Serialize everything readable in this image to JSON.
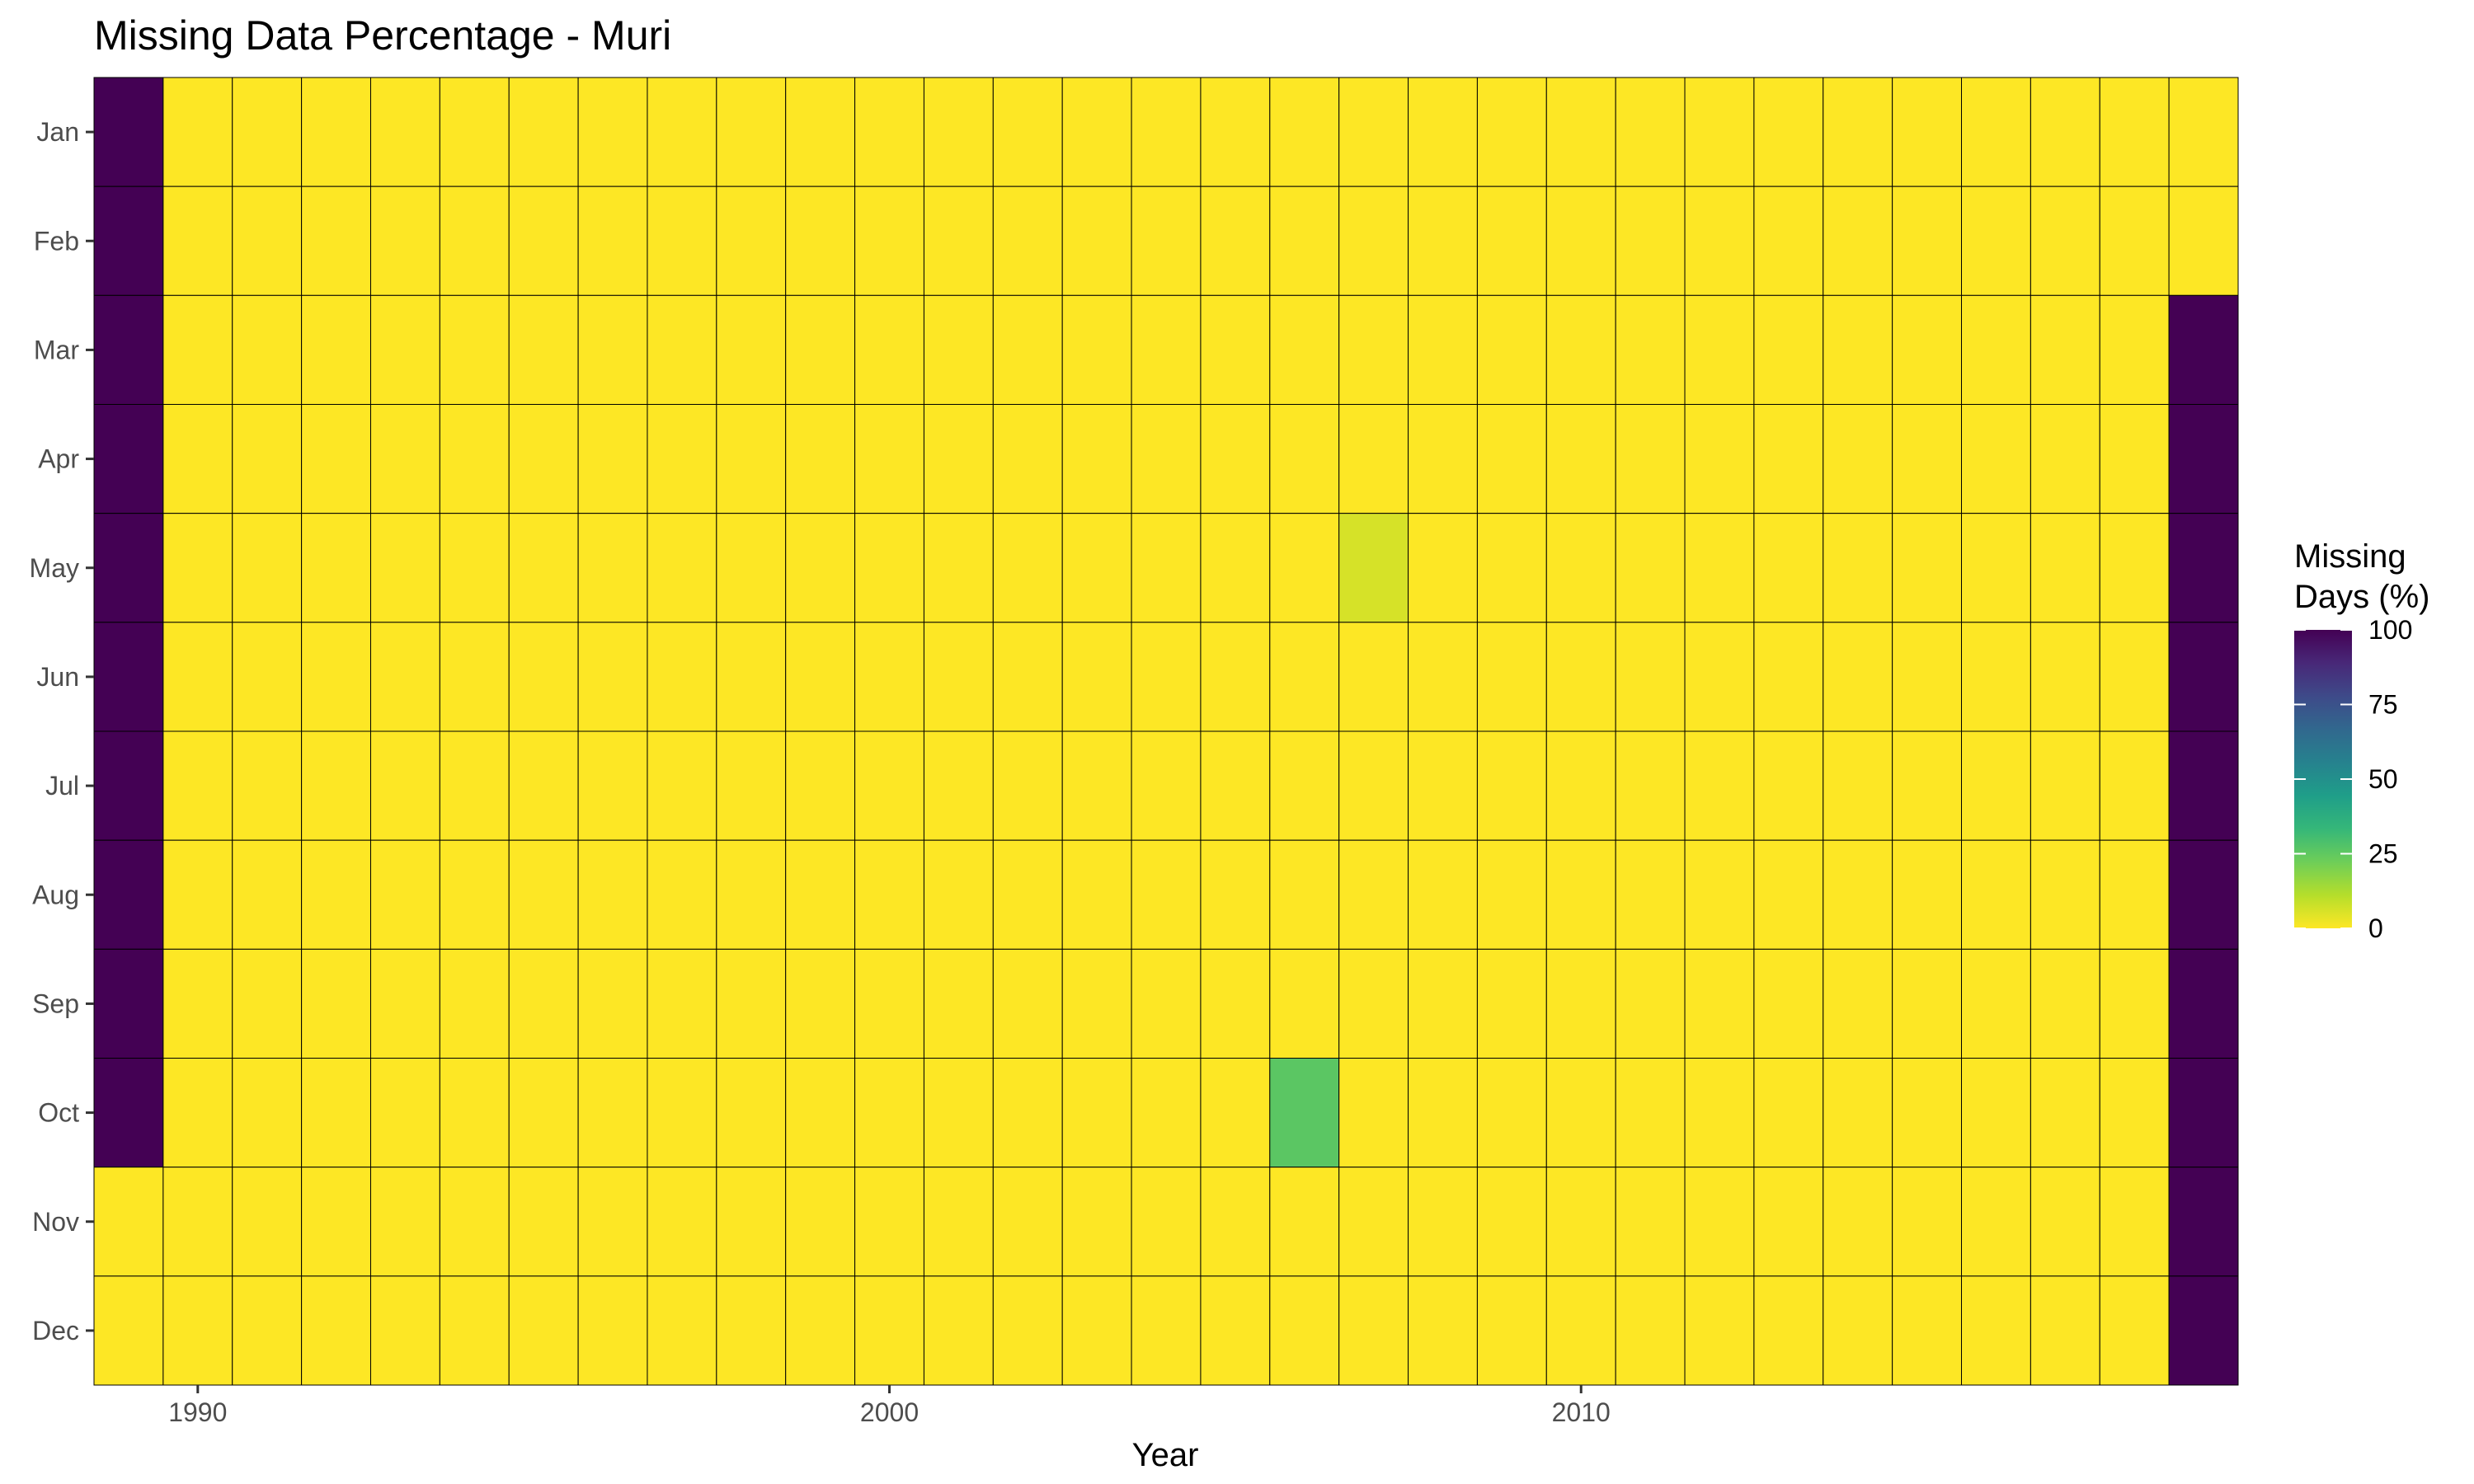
{
  "chart_data": {
    "type": "heatmap",
    "title": "Missing Data Percentage - Muri",
    "xlabel": "Year",
    "ylabel": "",
    "x_values": [
      1989,
      1990,
      1991,
      1992,
      1993,
      1994,
      1995,
      1996,
      1997,
      1998,
      1999,
      2000,
      2001,
      2002,
      2003,
      2004,
      2005,
      2006,
      2007,
      2008,
      2009,
      2010,
      2011,
      2012,
      2013,
      2014,
      2015,
      2016,
      2017,
      2018,
      2019
    ],
    "x_ticks": [
      {
        "value": 1990,
        "label": "1990"
      },
      {
        "value": 2000,
        "label": "2000"
      },
      {
        "value": 2010,
        "label": "2010"
      }
    ],
    "y_categories": [
      "Jan",
      "Feb",
      "Mar",
      "Apr",
      "May",
      "Jun",
      "Jul",
      "Aug",
      "Sep",
      "Oct",
      "Nov",
      "Dec"
    ],
    "default_value": 0,
    "nonzero_cells": [
      {
        "year": 1989,
        "month": "Jan",
        "value": 100
      },
      {
        "year": 1989,
        "month": "Feb",
        "value": 100
      },
      {
        "year": 1989,
        "month": "Mar",
        "value": 100
      },
      {
        "year": 1989,
        "month": "Apr",
        "value": 100
      },
      {
        "year": 1989,
        "month": "May",
        "value": 100
      },
      {
        "year": 1989,
        "month": "Jun",
        "value": 100
      },
      {
        "year": 1989,
        "month": "Jul",
        "value": 100
      },
      {
        "year": 1989,
        "month": "Aug",
        "value": 100
      },
      {
        "year": 1989,
        "month": "Sep",
        "value": 100
      },
      {
        "year": 1989,
        "month": "Oct",
        "value": 100
      },
      {
        "year": 2019,
        "month": "Mar",
        "value": 100
      },
      {
        "year": 2019,
        "month": "Apr",
        "value": 100
      },
      {
        "year": 2019,
        "month": "May",
        "value": 100
      },
      {
        "year": 2019,
        "month": "Jun",
        "value": 100
      },
      {
        "year": 2019,
        "month": "Jul",
        "value": 100
      },
      {
        "year": 2019,
        "month": "Aug",
        "value": 100
      },
      {
        "year": 2019,
        "month": "Sep",
        "value": 100
      },
      {
        "year": 2019,
        "month": "Oct",
        "value": 100
      },
      {
        "year": 2019,
        "month": "Nov",
        "value": 100
      },
      {
        "year": 2019,
        "month": "Dec",
        "value": 100
      },
      {
        "year": 2006,
        "month": "Oct",
        "value": 26
      },
      {
        "year": 2007,
        "month": "May",
        "value": 6
      }
    ],
    "legend": {
      "title_lines": [
        "Missing",
        "Days (%)"
      ],
      "position": "right",
      "min": 0,
      "max": 100,
      "ticks": [
        {
          "value": 100,
          "label": "100"
        },
        {
          "value": 75,
          "label": "75"
        },
        {
          "value": 50,
          "label": "50"
        },
        {
          "value": 25,
          "label": "25"
        },
        {
          "value": 0,
          "label": "0"
        }
      ]
    },
    "colors": {
      "scale": "viridis",
      "stops": [
        "#440154",
        "#482878",
        "#3e4a89",
        "#31688e",
        "#26828e",
        "#1f9e89",
        "#35b779",
        "#6ece58",
        "#b5de2b",
        "#fde725"
      ],
      "cell_border": "#000000",
      "background": "#ffffff"
    },
    "grid": false
  }
}
